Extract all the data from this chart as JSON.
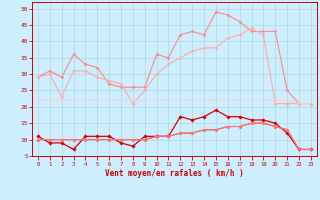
{
  "xlabel": "Vent moyen/en rafales ( km/h )",
  "background_color": "#cceeff",
  "grid_color": "#aacccc",
  "x": [
    0,
    1,
    2,
    3,
    4,
    5,
    6,
    7,
    8,
    9,
    10,
    11,
    12,
    13,
    14,
    15,
    16,
    17,
    18,
    19,
    20,
    21,
    22,
    23
  ],
  "ylim": [
    5,
    52
  ],
  "xlim": [
    -0.5,
    23.5
  ],
  "yticks": [
    5,
    10,
    15,
    20,
    25,
    30,
    35,
    40,
    45,
    50
  ],
  "series": [
    {
      "values": [
        29,
        31,
        29,
        36,
        33,
        32,
        27,
        26,
        26,
        26,
        36,
        35,
        42,
        43,
        42,
        49,
        48,
        46,
        43,
        43,
        43,
        25,
        21,
        21
      ],
      "color": "#ff8888",
      "lw": 0.8,
      "marker": "D",
      "ms": 1.5
    },
    {
      "values": [
        29,
        30,
        23,
        31,
        31,
        29,
        28,
        27,
        21,
        25,
        30,
        33,
        35,
        37,
        38,
        38,
        41,
        42,
        44,
        42,
        21,
        21,
        21,
        21
      ],
      "color": "#ffaaaa",
      "lw": 0.8,
      "marker": "D",
      "ms": 1.5
    },
    {
      "values": [
        22,
        22,
        22,
        22,
        22,
        22,
        22,
        22,
        22,
        22,
        22,
        22,
        22,
        22,
        22,
        22,
        22,
        22,
        22,
        22,
        22,
        22,
        21,
        21
      ],
      "color": "#ffcccc",
      "lw": 0.7,
      "marker": null,
      "ms": 0
    },
    {
      "values": [
        11,
        9,
        9,
        7,
        11,
        11,
        11,
        9,
        8,
        11,
        11,
        11,
        17,
        16,
        17,
        19,
        17,
        17,
        16,
        16,
        15,
        12,
        7,
        7
      ],
      "color": "#dd0000",
      "lw": 0.9,
      "marker": "D",
      "ms": 1.8
    },
    {
      "values": [
        10,
        10,
        10,
        10,
        10,
        10,
        10,
        10,
        10,
        10,
        11,
        11,
        12,
        12,
        13,
        13,
        14,
        14,
        15,
        15,
        14,
        13,
        7,
        7
      ],
      "color": "#ff3333",
      "lw": 0.8,
      "marker": "D",
      "ms": 1.5
    },
    {
      "values": [
        10,
        10,
        10,
        10,
        10,
        10,
        10,
        10,
        10,
        10,
        11,
        11,
        12,
        12,
        13,
        13,
        14,
        14,
        15,
        15,
        14,
        13,
        7,
        7
      ],
      "color": "#ff7777",
      "lw": 0.7,
      "marker": "D",
      "ms": 1.3
    }
  ]
}
